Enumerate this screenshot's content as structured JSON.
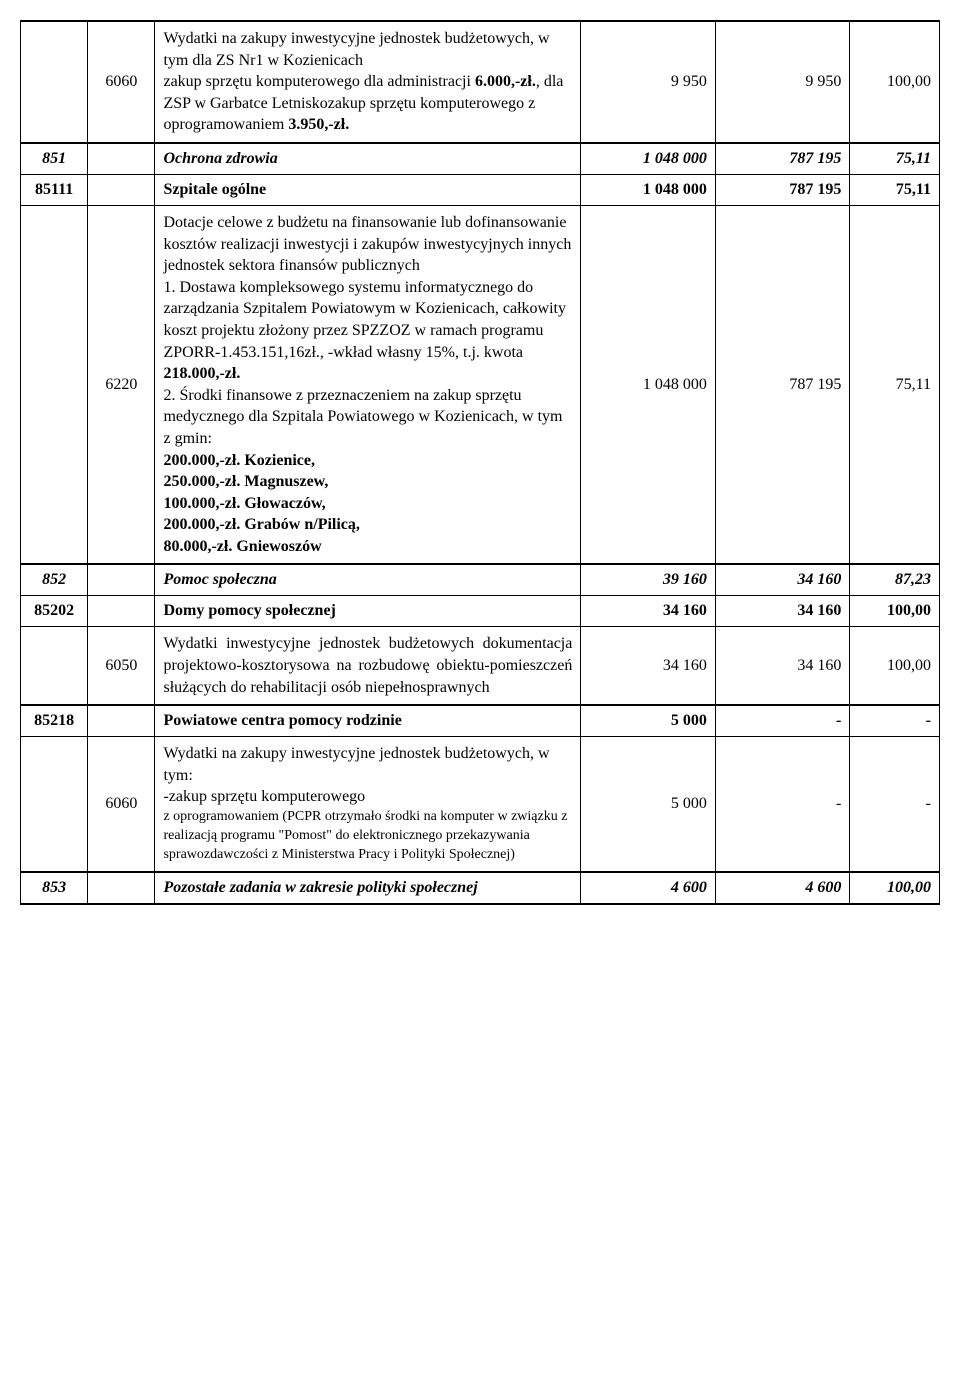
{
  "rows": {
    "r0": {
      "code": "6060",
      "desc_p1": "Wydatki na zakupy inwestycyjne jednostek budżetowych, w tym dla ZS Nr1 w Kozienicach",
      "desc_p2": "zakup sprzętu komputerowego dla administracji ",
      "desc_b1": "6.000,-zł.",
      "desc_p3": ",  dla ZSP w Garbatce Letniskozakup sprzętu komputerowego z oprogramowaniem ",
      "desc_b2": "3.950,-zł.",
      "v1": "9 950",
      "v2": "9 950",
      "v3": "100,00"
    },
    "r1": {
      "a": "851",
      "b": "",
      "c": "Ochrona zdrowia",
      "v1": "1 048 000",
      "v2": "787 195",
      "v3": "75,11"
    },
    "r2": {
      "a": "85111",
      "b": "",
      "c": "Szpitale ogólne",
      "v1": "1 048 000",
      "v2": "787 195",
      "v3": "75,11"
    },
    "r3": {
      "code": "6220",
      "p1": "Dotacje celowe z budżetu na finansowanie lub dofinansowanie kosztów realizacji inwestycji i zakupów inwestycyjnych innych jednostek sektora finansów publicznych",
      "p2a": "1. Dostawa kompleksowego systemu informatycznego do zarządzania Szpitalem Powiatowym w Kozienicach, całkowity koszt projektu złożony przez SPZZOZ w ramach programu ZPORR-1.453.151,16zł., -wkład własny 15%, t.j. kwota ",
      "p2b": "218.000,-zł.",
      "p3": "2. Środki finansowe z przeznaczeniem na zakup sprzętu medycznego dla Szpitala Powiatowego w Kozienicach, w tym z gmin:",
      "l1": "200.000,-zł. Kozienice,",
      "l2": "250.000,-zł. Magnuszew,",
      "l3": "100.000,-zł. Głowaczów,",
      "l4": "200.000,-zł. Grabów n/Pilicą,",
      "l5": "80.000,-zł. Gniewoszów",
      "v1": "1 048 000",
      "v2": "787 195",
      "v3": "75,11"
    },
    "r4": {
      "a": "852",
      "b": "",
      "c": "Pomoc społeczna",
      "v1": "39 160",
      "v2": "34 160",
      "v3": "87,23"
    },
    "r5": {
      "a": "85202",
      "b": "",
      "c": "Domy pomocy społecznej",
      "v1": "34 160",
      "v2": "34 160",
      "v3": "100,00"
    },
    "r6": {
      "code": "6050",
      "p1": "Wydatki inwestycyjne jednostek budżetowych dokumentacja projektowo-kosztorysowa na rozbudowę obiektu-pomieszczeń służących do rehabilitacji osób niepełnosprawnych",
      "v1": "34 160",
      "v2": "34 160",
      "v3": "100,00"
    },
    "r7": {
      "a": "85218",
      "b": "",
      "c": "Powiatowe centra pomocy rodzinie",
      "v1": "5 000",
      "v2": "-",
      "v3": "-"
    },
    "r8": {
      "code": "6060",
      "p1": "Wydatki na zakupy inwestycyjne jednostek budżetowych, w tym:",
      "p2": "-zakup sprzętu komputerowego",
      "p3": "z oprogramowaniem (PCPR otrzymało środki na komputer w związku z realizacją programu \"Pomost\" do elektronicznego przekazywania sprawozdawczości z Ministerstwa Pracy i Polityki Społecznej)",
      "v1": "5 000",
      "v2": "-",
      "v3": "-"
    },
    "r9": {
      "a": "853",
      "b": "",
      "c": "Pozostałe zadania w zakresie polityki społecznej",
      "v1": "4 600",
      "v2": "4 600",
      "v3": "100,00"
    }
  }
}
